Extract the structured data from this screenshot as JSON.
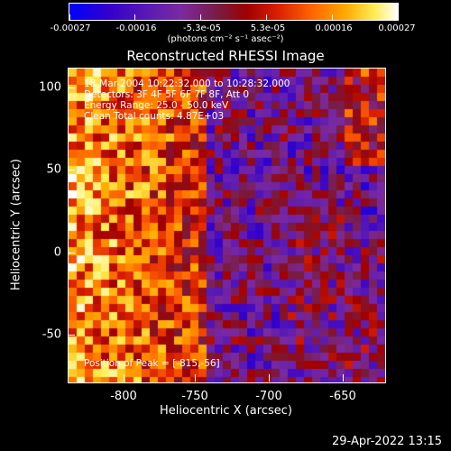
{
  "colorbar": {
    "ticks": [
      "-0.00027",
      "-0.00016",
      "-5.3e-05",
      "5.3e-05",
      "0.00016",
      "0.00027"
    ],
    "unit_label": "(photons cm⁻² s⁻¹ asec⁻²)"
  },
  "title": "Reconstructed RHESSI Image",
  "info": {
    "line1": "18-Mar-2004 10:22:32.000 to 10:28:32.000",
    "line2": "Detectors: 3F 4F 5F 6F 7F 8F, Att 0",
    "line3": "Energy Range: 25.0 - 50.0 keV",
    "line4": "Clean     Total counts: 4.87E+03"
  },
  "peak_label": "Position of Peak = [-815,-56]",
  "x_axis": {
    "title": "Heliocentric X (arcsec)",
    "ticks": [
      "-800",
      "-750",
      "-700",
      "-650"
    ]
  },
  "y_axis": {
    "title": "Heliocentric Y (arcsec)",
    "ticks": [
      "100",
      "50",
      "0",
      "-50"
    ]
  },
  "timestamp": "29-Apr-2022 13:15"
}
